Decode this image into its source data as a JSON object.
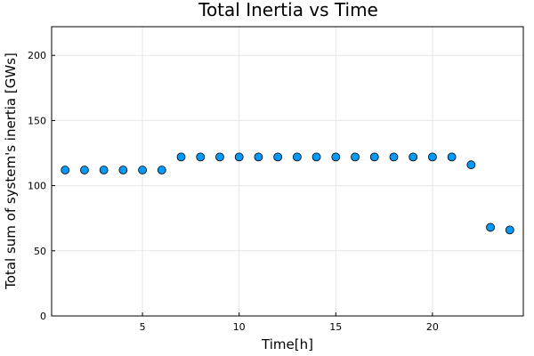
{
  "chart_data": {
    "type": "scatter",
    "title": "Total Inertia vs Time",
    "xlabel": "Time[h]",
    "ylabel": "Total sum of system's inertia [GWs]",
    "xlim": [
      0.3,
      24.7
    ],
    "ylim": [
      0,
      222
    ],
    "xticks": [
      5,
      10,
      15,
      20
    ],
    "yticks": [
      0,
      50,
      100,
      150,
      200
    ],
    "grid": true,
    "legend": "none",
    "marker_color": "#009AFA",
    "x": [
      1,
      2,
      3,
      4,
      5,
      6,
      7,
      8,
      9,
      10,
      11,
      12,
      13,
      14,
      15,
      16,
      17,
      18,
      19,
      20,
      21,
      22,
      23,
      24
    ],
    "y": [
      112,
      112,
      112,
      112,
      112,
      112,
      122,
      122,
      122,
      122,
      122,
      122,
      122,
      122,
      122,
      122,
      122,
      122,
      122,
      122,
      122,
      116,
      68,
      66
    ]
  }
}
